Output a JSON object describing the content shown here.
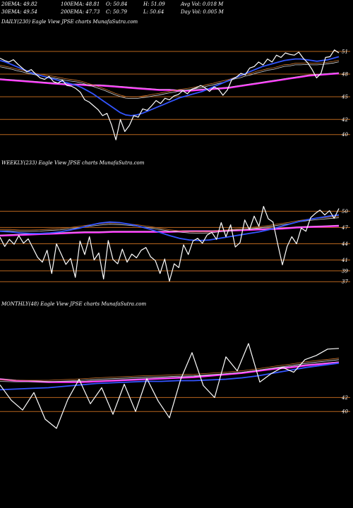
{
  "header": {
    "ema20": "20EMA: 49.82",
    "ema100": "100EMA: 48.81",
    "open": "O: 50.84",
    "high": "H: 51.09",
    "avgvol": "Avg Vol: 0.018  M",
    "ema30": "30EMA: 49.54",
    "ema200": "200EMA: 47.73",
    "close": "C: 50.79",
    "low": "L: 50.64",
    "dayvol": "Day Vol: 0.005 M"
  },
  "colors": {
    "background": "#000000",
    "price": "#ffffff",
    "level_line": "#b8651e",
    "ema_fast": "#3355ff",
    "ema_slow": "#ff33ff",
    "ema_mid": "#d9d9d9",
    "ema_long": "#d07830"
  },
  "chart_data": [
    {
      "type": "line",
      "title": "DAILY(230) Eagle  View  JPSE charts MunafaSutra.com",
      "levels": [
        {
          "label": "51",
          "value": 51
        },
        {
          "label": "48",
          "value": 48
        },
        {
          "label": "45",
          "value": 45
        },
        {
          "label": "42",
          "value": 42
        },
        {
          "label": "40",
          "value": 40
        }
      ],
      "ylim": [
        38.2,
        52.2
      ],
      "series": [
        {
          "role": "price",
          "values": [
            50.1,
            49.8,
            49.6,
            49.9,
            49.3,
            48.8,
            48.3,
            48.6,
            48.0,
            47.5,
            47.3,
            47.7,
            47.0,
            46.8,
            47.2,
            46.5,
            46.4,
            46.1,
            45.6,
            44.6,
            44.3,
            43.8,
            43.3,
            42.5,
            42.8,
            41.3,
            39.3,
            42.0,
            40.4,
            41.2,
            42.5,
            42.3,
            43.4,
            43.2,
            43.8,
            44.5,
            44.1,
            44.8,
            44.6,
            45.1,
            45.3,
            45.8,
            45.4,
            46.0,
            46.2,
            46.5,
            46.2,
            45.7,
            46.3,
            46.0,
            45.2,
            45.9,
            47.3,
            47.6,
            48.1,
            47.9,
            48.8,
            49.0,
            49.6,
            49.2,
            50.0,
            49.6,
            50.5,
            50.2,
            50.8,
            50.6,
            50.5,
            50.9,
            50.1,
            49.5,
            48.6,
            47.5,
            48.1,
            50.2,
            50.3,
            51.2,
            50.8
          ]
        },
        {
          "role": "ema_fast",
          "values": [
            49.8,
            49.6,
            49.3,
            49.0,
            48.7,
            48.4,
            48.1,
            47.9,
            47.7,
            47.5,
            47.3,
            47.1,
            46.9,
            46.7,
            46.5,
            46.2,
            45.8,
            45.4,
            44.9,
            44.4,
            43.9,
            43.4,
            42.9,
            42.6,
            42.5,
            42.6,
            42.8,
            43.1,
            43.4,
            43.7,
            44.0,
            44.3,
            44.6,
            44.9,
            45.1,
            45.3,
            45.5,
            45.7,
            46.0,
            46.3,
            46.6,
            46.9,
            47.2,
            47.5,
            47.8,
            48.1,
            48.4,
            48.7,
            49.0,
            49.2,
            49.4,
            49.6,
            49.8,
            49.9,
            50.0,
            50.0,
            49.9,
            49.8,
            49.7,
            49.8,
            49.9,
            50.1,
            50.3
          ]
        },
        {
          "role": "ema_slow",
          "values": [
            47.3,
            47.2,
            47.1,
            47.0,
            46.9,
            46.8,
            46.7,
            46.6,
            46.6,
            46.5,
            46.5,
            46.4,
            46.3,
            46.2,
            46.1,
            46.0,
            45.9,
            45.9,
            45.8,
            45.8,
            45.9,
            46.0,
            46.1,
            46.2,
            46.4,
            46.6,
            46.8,
            47.0,
            47.2,
            47.4,
            47.6,
            47.8,
            47.9,
            48.0,
            48.1
          ]
        }
      ]
    },
    {
      "type": "line",
      "title": "WEEKLY(233) Eagle  View  JPSE charts MunafaSutra.com",
      "levels": [
        {
          "label": "50",
          "value": 50
        },
        {
          "label": "47",
          "value": 47
        },
        {
          "label": "44",
          "value": 44
        },
        {
          "label": "41",
          "value": 41
        },
        {
          "label": "39",
          "value": 39
        },
        {
          "label": "37",
          "value": 37
        }
      ],
      "ylim": [
        35.6,
        52.0
      ],
      "series": [
        {
          "role": "price",
          "values": [
            45.2,
            43.5,
            44.8,
            43.9,
            45.5,
            44.1,
            44.9,
            43.2,
            41.5,
            40.6,
            42.8,
            38.5,
            44.0,
            42.1,
            40.2,
            41.3,
            37.8,
            44.5,
            42.0,
            45.3,
            41.0,
            42.3,
            37.5,
            44.6,
            41.1,
            40.3,
            43.0,
            40.6,
            42.1,
            41.4,
            42.8,
            43.3,
            41.6,
            40.9,
            38.5,
            41.2,
            37.1,
            40.3,
            39.6,
            43.8,
            42.0,
            44.5,
            45.0,
            44.1,
            45.6,
            46.1,
            44.8,
            47.9,
            45.3,
            47.5,
            43.4,
            44.2,
            48.4,
            46.6,
            49.1,
            47.2,
            50.9,
            48.6,
            48.0,
            44.0,
            40.1,
            43.5,
            45.3,
            44.0,
            46.9,
            46.3,
            48.8,
            49.6,
            50.2,
            49.3,
            50.1,
            48.7,
            50.5
          ]
        },
        {
          "role": "ema_fast",
          "values": [
            46.3,
            46.2,
            46.0,
            45.9,
            45.9,
            46.0,
            46.2,
            46.5,
            46.9,
            47.4,
            47.8,
            48.0,
            47.9,
            47.6,
            47.2,
            46.7,
            46.1,
            45.5,
            45.0,
            44.7,
            44.6,
            44.7,
            45.0,
            45.3,
            45.6,
            45.9,
            46.2,
            46.6,
            47.1,
            47.6,
            48.1,
            48.5,
            48.8,
            49.1,
            49.3
          ]
        },
        {
          "role": "ema_slow",
          "values": [
            45.5,
            45.6,
            45.7,
            45.8,
            45.9,
            46.0,
            46.1,
            46.1,
            46.2,
            46.2,
            46.2,
            46.2,
            46.2,
            46.3,
            46.3,
            46.3,
            46.4,
            46.5,
            46.6,
            46.7,
            46.8,
            47.0,
            47.1,
            47.2,
            47.3
          ]
        }
      ]
    },
    {
      "type": "line",
      "title": "MONTHLY(48) Eagle  View  JPSE charts MunafaSutra.com",
      "levels": [
        {
          "label": "42",
          "value": 42
        },
        {
          "label": "40",
          "value": 40
        }
      ],
      "ylim": [
        36.8,
        51.4
      ],
      "series": [
        {
          "role": "price",
          "values": [
            43.8,
            41.6,
            40.2,
            42.7,
            38.9,
            37.6,
            41.7,
            44.6,
            41.1,
            43.4,
            39.6,
            43.9,
            40.0,
            44.7,
            41.5,
            39.1,
            44.6,
            48.4,
            43.7,
            42.0,
            47.8,
            45.8,
            49.7,
            44.2,
            45.4,
            46.3,
            45.6,
            47.4,
            48.0,
            48.9,
            49.0
          ]
        },
        {
          "role": "ema_fast",
          "values": [
            43.1,
            43.2,
            43.3,
            43.4,
            43.6,
            43.8,
            44.0,
            44.1,
            44.2,
            44.3,
            44.3,
            44.4,
            44.4,
            44.5,
            44.6,
            44.8,
            45.1,
            45.5,
            45.9,
            46.3,
            46.6,
            46.9
          ]
        },
        {
          "role": "ema_slow",
          "values": [
            44.6,
            44.4,
            44.3,
            44.2,
            44.2,
            44.2,
            44.3,
            44.4,
            44.5,
            44.6,
            44.7,
            44.8,
            44.9,
            45.1,
            45.3,
            45.5,
            45.8,
            46.1,
            46.3,
            46.6,
            46.8,
            47.0
          ]
        }
      ]
    }
  ]
}
